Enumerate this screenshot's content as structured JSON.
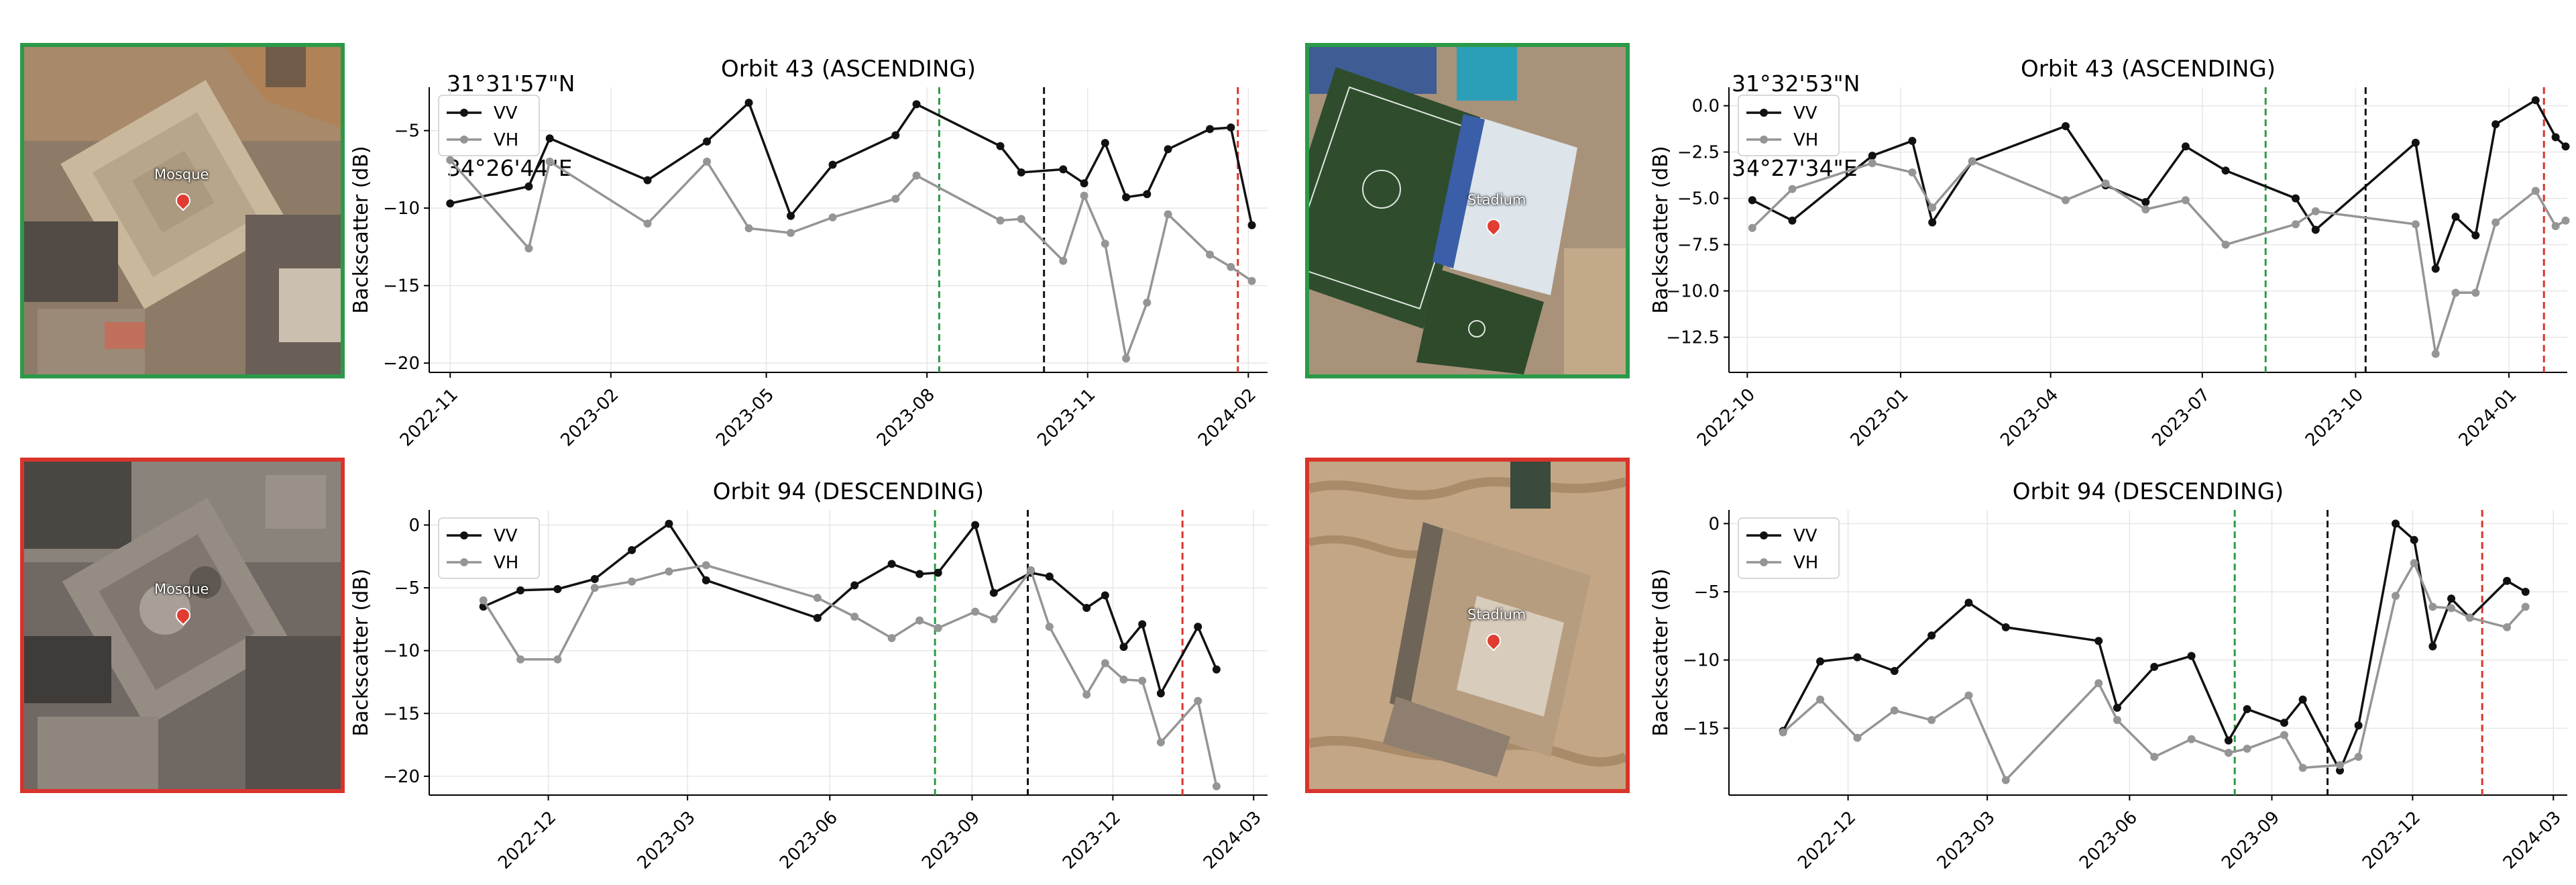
{
  "coordinates": [
    {
      "lat": "31°31'57\"N",
      "lon": "34°26'44\"E"
    },
    {
      "lat": "31°32'53\"N",
      "lon": "34°27'34\"E"
    }
  ],
  "thumbnails": [
    {
      "label": "Mosque",
      "status": "intact",
      "border_color": "#2b9a48"
    },
    {
      "label": "Mosque",
      "status": "damaged",
      "border_color": "#d9342b"
    },
    {
      "label": "Stadium",
      "status": "intact",
      "border_color": "#2b9a48"
    },
    {
      "label": "Stadium",
      "status": "damaged",
      "border_color": "#d9342b"
    }
  ],
  "colors": {
    "VV": "#111111",
    "VH": "#959595",
    "green_line": "#2b9a48",
    "black_line": "#111111",
    "red_line": "#d9342b"
  },
  "chart_data": [
    {
      "type": "line",
      "title": "Orbit 43 (ASCENDING)",
      "ylabel": "Backscatter (dB)",
      "xlabel": "",
      "xlim": [
        "2022-10-20",
        "2024-02-12"
      ],
      "ylim": [
        -20.6,
        -2.2
      ],
      "yticks": [
        -20,
        -15,
        -10,
        -5
      ],
      "xticks": [
        "2022-11",
        "2023-02",
        "2023-05",
        "2023-08",
        "2023-11",
        "2024-02"
      ],
      "legend": "top-left",
      "grid": true,
      "vlines": [
        {
          "x": "2023-08-08",
          "color": "green"
        },
        {
          "x": "2023-10-07",
          "color": "black"
        },
        {
          "x": "2024-01-26",
          "color": "red"
        }
      ],
      "series": [
        {
          "name": "VV",
          "x": [
            "2022-11-01",
            "2022-12-16",
            "2022-12-28",
            "2023-02-22",
            "2023-03-28",
            "2023-04-21",
            "2023-05-15",
            "2023-06-08",
            "2023-07-14",
            "2023-07-26",
            "2023-09-12",
            "2023-09-24",
            "2023-10-18",
            "2023-10-30",
            "2023-11-11",
            "2023-11-23",
            "2023-12-05",
            "2023-12-17",
            "2024-01-10",
            "2024-01-22",
            "2024-02-03"
          ],
          "y": [
            -9.7,
            -8.6,
            -5.5,
            -8.2,
            -5.7,
            -3.2,
            -10.5,
            -7.2,
            -5.3,
            -3.3,
            -6.0,
            -7.7,
            -7.5,
            -8.4,
            -5.8,
            -9.3,
            -9.1,
            -6.2,
            -4.9,
            -4.8,
            -11.1
          ]
        },
        {
          "name": "VH",
          "x": [
            "2022-11-01",
            "2022-12-16",
            "2022-12-28",
            "2023-02-22",
            "2023-03-28",
            "2023-04-21",
            "2023-05-15",
            "2023-06-08",
            "2023-07-14",
            "2023-07-26",
            "2023-09-12",
            "2023-09-24",
            "2023-10-18",
            "2023-10-30",
            "2023-11-11",
            "2023-11-23",
            "2023-12-05",
            "2023-12-17",
            "2024-01-10",
            "2024-01-22",
            "2024-02-03"
          ],
          "y": [
            -6.9,
            -12.6,
            -7.0,
            -11.0,
            -7.0,
            -11.3,
            -11.6,
            -10.6,
            -9.4,
            -7.9,
            -10.8,
            -10.7,
            -13.4,
            -9.2,
            -12.3,
            -19.7,
            -16.1,
            -10.4,
            -13.0,
            -13.8,
            -14.7
          ]
        }
      ]
    },
    {
      "type": "line",
      "title": "Orbit 94 (DESCENDING)",
      "ylabel": "Backscatter (dB)",
      "xlabel": "",
      "xlim": [
        "2022-09-15",
        "2024-03-10"
      ],
      "ylim": [
        -21.5,
        1.2
      ],
      "yticks": [
        -20,
        -15,
        -10,
        -5,
        0
      ],
      "xticks": [
        "2022-12",
        "2023-03",
        "2023-06",
        "2023-09",
        "2023-12",
        "2024-03"
      ],
      "legend": "top-left",
      "grid": true,
      "vlines": [
        {
          "x": "2023-08-08",
          "color": "green"
        },
        {
          "x": "2023-10-07",
          "color": "black"
        },
        {
          "x": "2024-01-15",
          "color": "red"
        }
      ],
      "series": [
        {
          "name": "VV",
          "x": [
            "2022-10-20",
            "2022-11-13",
            "2022-12-07",
            "2022-12-31",
            "2023-01-24",
            "2023-02-17",
            "2023-03-13",
            "2023-05-24",
            "2023-06-17",
            "2023-07-11",
            "2023-07-29",
            "2023-08-10",
            "2023-09-03",
            "2023-09-15",
            "2023-10-09",
            "2023-10-21",
            "2023-11-14",
            "2023-11-26",
            "2023-12-08",
            "2023-12-20",
            "2024-01-01",
            "2024-01-25",
            "2024-02-06"
          ],
          "y": [
            -6.5,
            -5.2,
            -5.1,
            -4.3,
            -2.0,
            0.1,
            -4.4,
            -7.4,
            -4.8,
            -3.1,
            -3.9,
            -3.8,
            0.0,
            -5.4,
            -3.8,
            -4.1,
            -6.6,
            -5.6,
            -9.7,
            -7.9,
            -13.4,
            -8.1,
            -11.5
          ]
        },
        {
          "name": "VH",
          "x": [
            "2022-10-20",
            "2022-11-13",
            "2022-12-07",
            "2022-12-31",
            "2023-01-24",
            "2023-02-17",
            "2023-03-13",
            "2023-05-24",
            "2023-06-17",
            "2023-07-11",
            "2023-07-29",
            "2023-08-10",
            "2023-09-03",
            "2023-09-15",
            "2023-10-09",
            "2023-10-21",
            "2023-11-14",
            "2023-11-26",
            "2023-12-08",
            "2023-12-20",
            "2024-01-01",
            "2024-01-25",
            "2024-02-06"
          ],
          "y": [
            -6.0,
            -10.7,
            -10.7,
            -5.0,
            -4.5,
            -3.7,
            -3.2,
            -5.8,
            -7.3,
            -9.0,
            -7.6,
            -8.2,
            -6.9,
            -7.5,
            -3.6,
            -8.1,
            -13.5,
            -11.0,
            -12.3,
            -12.4,
            -17.3,
            -14.0,
            -20.8
          ]
        }
      ]
    },
    {
      "type": "line",
      "title": "Orbit 43 (ASCENDING)",
      "ylabel": "Backscatter (dB)",
      "xlabel": "",
      "xlim": [
        "2022-09-20",
        "2024-02-05"
      ],
      "ylim": [
        -14.4,
        1.0
      ],
      "yticks": [
        -12.5,
        -10.0,
        -7.5,
        -5.0,
        -2.5,
        0.0
      ],
      "xticks": [
        "2022-10",
        "2023-01",
        "2023-04",
        "2023-07",
        "2023-10",
        "2024-01"
      ],
      "legend": "top-left",
      "grid": true,
      "vlines": [
        {
          "x": "2023-08-08",
          "color": "green"
        },
        {
          "x": "2023-10-07",
          "color": "black"
        },
        {
          "x": "2024-01-22",
          "color": "red"
        }
      ],
      "series": [
        {
          "name": "VV",
          "x": [
            "2022-10-04",
            "2022-10-28",
            "2022-12-15",
            "2023-01-08",
            "2023-01-20",
            "2023-02-13",
            "2023-04-10",
            "2023-05-04",
            "2023-05-28",
            "2023-06-21",
            "2023-07-15",
            "2023-08-26",
            "2023-09-07",
            "2023-11-06",
            "2023-11-18",
            "2023-11-30",
            "2023-12-12",
            "2023-12-24",
            "2024-01-17",
            "2024-01-29",
            "2024-02-04"
          ],
          "y": [
            -5.1,
            -6.2,
            -2.7,
            -1.9,
            -6.3,
            -3.0,
            -1.1,
            -4.3,
            -5.2,
            -2.2,
            -3.5,
            -5.0,
            -6.7,
            -2.0,
            -8.8,
            -6.0,
            -7.0,
            -1.0,
            0.3,
            -1.7,
            -2.2
          ]
        },
        {
          "name": "VH",
          "x": [
            "2022-10-04",
            "2022-10-28",
            "2022-12-15",
            "2023-01-08",
            "2023-01-20",
            "2023-02-13",
            "2023-04-10",
            "2023-05-04",
            "2023-05-28",
            "2023-06-21",
            "2023-07-15",
            "2023-08-26",
            "2023-09-07",
            "2023-11-06",
            "2023-11-18",
            "2023-11-30",
            "2023-12-12",
            "2023-12-24",
            "2024-01-17",
            "2024-01-29",
            "2024-02-04"
          ],
          "y": [
            -6.6,
            -4.5,
            -3.1,
            -3.6,
            -5.5,
            -3.0,
            -5.1,
            -4.2,
            -5.6,
            -5.1,
            -7.5,
            -6.4,
            -5.7,
            -6.4,
            -13.4,
            -10.1,
            -10.1,
            -6.3,
            -4.6,
            -6.5,
            -6.2
          ]
        }
      ]
    },
    {
      "type": "line",
      "title": "Orbit 94 (DESCENDING)",
      "ylabel": "Backscatter (dB)",
      "xlabel": "",
      "xlim": [
        "2022-09-15",
        "2024-03-10"
      ],
      "ylim": [
        -19.9,
        1.0
      ],
      "yticks": [
        -15,
        -10,
        -5,
        0
      ],
      "xticks": [
        "2022-12",
        "2023-03",
        "2023-06",
        "2023-09",
        "2023-12",
        "2024-03"
      ],
      "legend": "top-left",
      "grid": true,
      "vlines": [
        {
          "x": "2023-08-08",
          "color": "green"
        },
        {
          "x": "2023-10-07",
          "color": "black"
        },
        {
          "x": "2024-01-15",
          "color": "red"
        }
      ],
      "series": [
        {
          "name": "VV",
          "x": [
            "2022-10-20",
            "2022-11-13",
            "2022-12-07",
            "2022-12-31",
            "2023-01-24",
            "2023-02-17",
            "2023-03-13",
            "2023-05-12",
            "2023-05-24",
            "2023-06-17",
            "2023-07-11",
            "2023-08-04",
            "2023-08-16",
            "2023-09-09",
            "2023-09-21",
            "2023-10-15",
            "2023-10-27",
            "2023-11-20",
            "2023-12-02",
            "2023-12-14",
            "2023-12-26",
            "2024-01-07",
            "2024-01-31",
            "2024-02-12"
          ],
          "y": [
            -15.2,
            -10.1,
            -9.8,
            -10.8,
            -8.2,
            -5.8,
            -7.6,
            -8.6,
            -13.5,
            -10.5,
            -9.7,
            -15.9,
            -13.6,
            -14.6,
            -12.9,
            -18.1,
            -14.8,
            0.0,
            -1.2,
            -9.0,
            -5.5,
            -6.9,
            -4.2,
            -5.0
          ]
        },
        {
          "name": "VH",
          "x": [
            "2022-10-20",
            "2022-11-13",
            "2022-12-07",
            "2022-12-31",
            "2023-01-24",
            "2023-02-17",
            "2023-03-13",
            "2023-05-12",
            "2023-05-24",
            "2023-06-17",
            "2023-07-11",
            "2023-08-04",
            "2023-08-16",
            "2023-09-09",
            "2023-09-21",
            "2023-10-15",
            "2023-10-27",
            "2023-11-20",
            "2023-12-02",
            "2023-12-14",
            "2023-12-26",
            "2024-01-07",
            "2024-01-31",
            "2024-02-12"
          ],
          "y": [
            -15.3,
            -12.9,
            -15.7,
            -13.7,
            -14.4,
            -12.6,
            -18.8,
            -11.7,
            -14.4,
            -17.1,
            -15.8,
            -16.8,
            -16.5,
            -15.5,
            -17.9,
            -17.7,
            -17.1,
            -5.3,
            -2.9,
            -6.1,
            -6.2,
            -6.9,
            -7.6,
            -6.1
          ]
        }
      ]
    }
  ]
}
